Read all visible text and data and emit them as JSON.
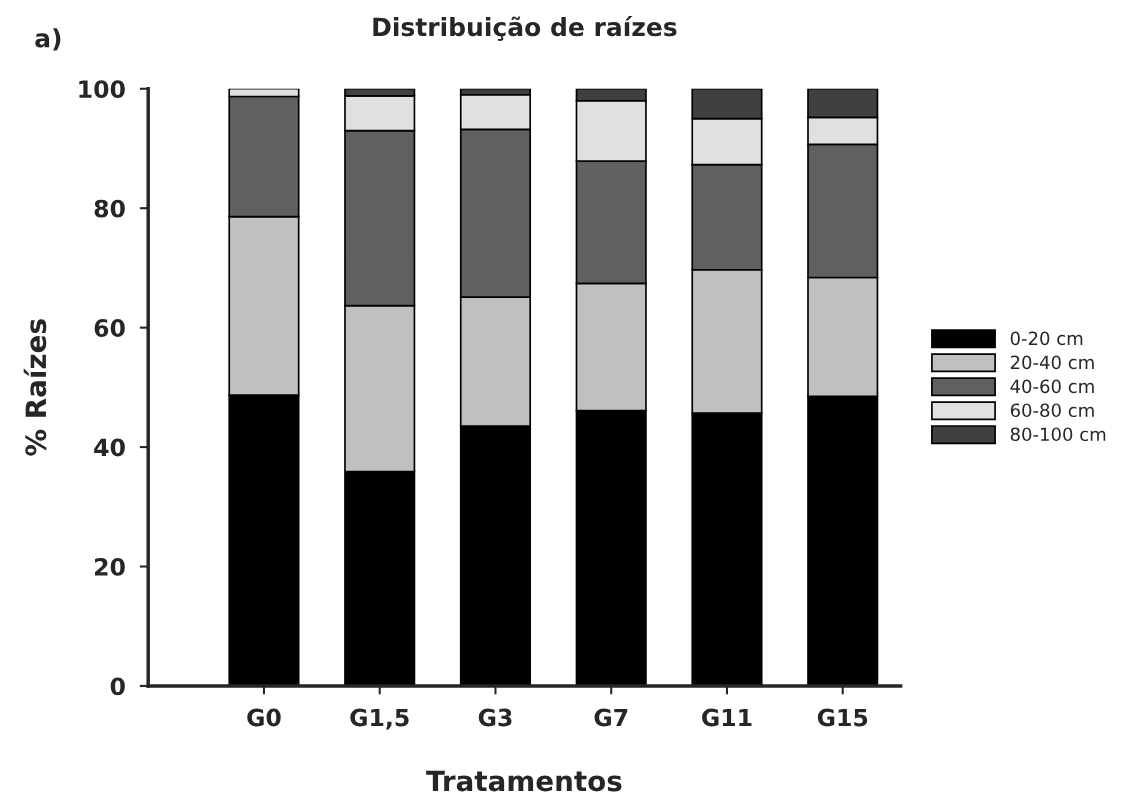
{
  "chart_data": {
    "type": "bar",
    "title": "Distribuição de raízes",
    "xlabel": "Tratamentos",
    "ylabel": "% Raízes",
    "annotations": [
      "a)"
    ],
    "categories": [
      "G0",
      "G1,5",
      "G3",
      "G7",
      "G11",
      "G15"
    ],
    "stacked": true,
    "ylim": [
      0,
      100
    ],
    "yticks": [
      0,
      20,
      40,
      60,
      80,
      100
    ],
    "grid": false,
    "legend": "right",
    "series": [
      {
        "name": "0-20 cm",
        "color": "#000000",
        "values": [
          48.7,
          35.9,
          43.5,
          46.1,
          45.7,
          48.5
        ]
      },
      {
        "name": "20-40 cm",
        "color": "#c0c0c0",
        "values": [
          29.9,
          27.8,
          21.6,
          21.3,
          24.0,
          19.9
        ]
      },
      {
        "name": "40-60 cm",
        "color": "#606060",
        "values": [
          20.1,
          29.3,
          28.1,
          20.5,
          17.6,
          22.3
        ]
      },
      {
        "name": "60-80 cm",
        "color": "#e0e0e0",
        "values": [
          1.3,
          5.8,
          5.8,
          10.1,
          7.7,
          4.5
        ]
      },
      {
        "name": "80-100 cm",
        "color": "#404040",
        "values": [
          null,
          1.2,
          1.0,
          2.0,
          5.0,
          4.8
        ]
      }
    ]
  }
}
